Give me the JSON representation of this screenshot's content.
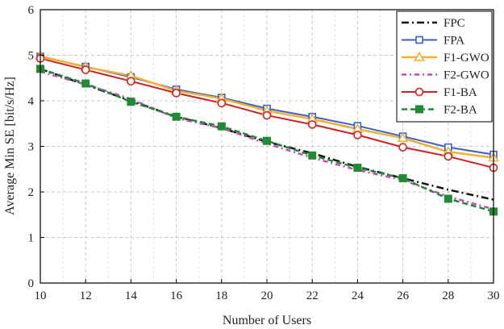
{
  "chart_data": {
    "type": "line",
    "xlabel": "Number of Users",
    "ylabel": "Average Min SE [bit/s/Hz]",
    "xlim": [
      10,
      30
    ],
    "ylim": [
      0,
      6
    ],
    "xticks": [
      10,
      12,
      14,
      16,
      18,
      20,
      22,
      24,
      26,
      28,
      30
    ],
    "yticks": [
      0,
      1,
      2,
      3,
      4,
      5,
      6
    ],
    "grid": "on",
    "legend_position": "top-right",
    "x": [
      10,
      12,
      14,
      16,
      18,
      20,
      22,
      24,
      26,
      28,
      30
    ],
    "series": [
      {
        "name": "FPC",
        "values": [
          4.7,
          4.35,
          4.0,
          3.65,
          3.4,
          3.1,
          2.85,
          2.55,
          2.3,
          2.05,
          1.83
        ],
        "color": "#111111",
        "dash": "9,4,2,4",
        "marker": "none",
        "width": 2.5
      },
      {
        "name": "FPA",
        "values": [
          4.97,
          4.75,
          4.52,
          4.25,
          4.07,
          3.83,
          3.65,
          3.45,
          3.22,
          2.98,
          2.82
        ],
        "color": "#3a5fcd",
        "dash": "",
        "marker": "square",
        "width": 2
      },
      {
        "name": "F1-GWO",
        "values": [
          4.98,
          4.74,
          4.55,
          4.22,
          4.05,
          3.78,
          3.6,
          3.38,
          3.18,
          2.88,
          2.75
        ],
        "color": "#f0b030",
        "dash": "",
        "marker": "triangle",
        "width": 2.5
      },
      {
        "name": "F2-GWO",
        "values": [
          4.64,
          4.36,
          4.04,
          3.62,
          3.4,
          3.06,
          2.75,
          2.48,
          2.26,
          1.9,
          1.62
        ],
        "color": "#c848b8",
        "dash": "6,4,2,4",
        "marker": "none",
        "width": 2.5
      },
      {
        "name": "F1-BA",
        "values": [
          4.93,
          4.68,
          4.43,
          4.17,
          3.95,
          3.68,
          3.48,
          3.25,
          2.98,
          2.78,
          2.53
        ],
        "color": "#d02020",
        "dash": "",
        "marker": "circle",
        "width": 2
      },
      {
        "name": "F2-BA",
        "values": [
          4.7,
          4.38,
          3.98,
          3.65,
          3.44,
          3.12,
          2.8,
          2.53,
          2.3,
          1.85,
          1.57
        ],
        "color": "#208a35",
        "dash": "7,4",
        "marker": "filled-square",
        "width": 2.5
      }
    ]
  }
}
